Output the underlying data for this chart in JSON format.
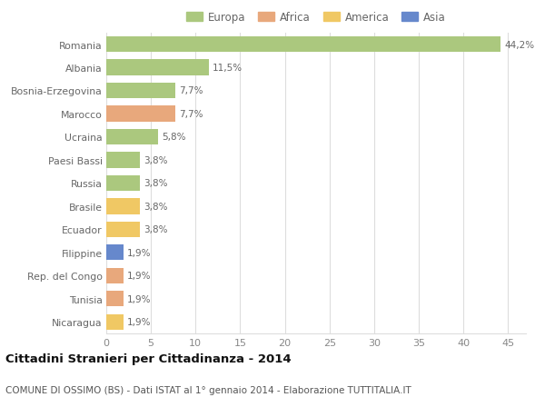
{
  "countries": [
    "Romania",
    "Albania",
    "Bosnia-Erzegovina",
    "Marocco",
    "Ucraina",
    "Paesi Bassi",
    "Russia",
    "Brasile",
    "Ecuador",
    "Filippine",
    "Rep. del Congo",
    "Tunisia",
    "Nicaragua"
  ],
  "values": [
    44.2,
    11.5,
    7.7,
    7.7,
    5.8,
    3.8,
    3.8,
    3.8,
    3.8,
    1.9,
    1.9,
    1.9,
    1.9
  ],
  "labels": [
    "44,2%",
    "11,5%",
    "7,7%",
    "7,7%",
    "5,8%",
    "3,8%",
    "3,8%",
    "3,8%",
    "3,8%",
    "1,9%",
    "1,9%",
    "1,9%",
    "1,9%"
  ],
  "bar_colors": [
    "#abc87e",
    "#abc87e",
    "#abc87e",
    "#e8a87c",
    "#abc87e",
    "#abc87e",
    "#abc87e",
    "#f0c864",
    "#f0c864",
    "#6688cc",
    "#e8a87c",
    "#e8a87c",
    "#f0c864"
  ],
  "legend_labels": [
    "Europa",
    "Africa",
    "America",
    "Asia"
  ],
  "legend_colors": [
    "#abc87e",
    "#e8a87c",
    "#f0c864",
    "#6688cc"
  ],
  "title": "Cittadini Stranieri per Cittadinanza - 2014",
  "subtitle": "COMUNE DI OSSIMO (BS) - Dati ISTAT al 1° gennaio 2014 - Elaborazione TUTTITALIA.IT",
  "xlim": [
    0,
    47
  ],
  "xticks": [
    0,
    5,
    10,
    15,
    20,
    25,
    30,
    35,
    40,
    45
  ],
  "background_color": "#ffffff",
  "grid_color": "#dddddd"
}
